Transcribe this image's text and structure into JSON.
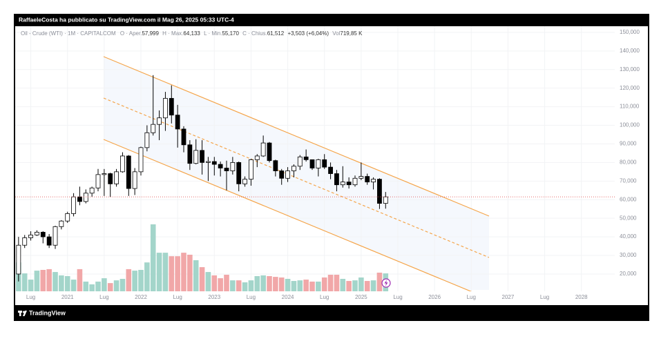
{
  "header": {
    "text": "RaffaeleCosta ha pubblicato su TradingView.com il Mag 26, 2025 05:33 UTC-4"
  },
  "legend": {
    "symbol": "Oil - Crude (WTI) · 1M · CAPITALCOM",
    "open_label": "O · Aper.",
    "open": "57,999",
    "high_label": "H · Max.",
    "high": "64,133",
    "low_label": "L · Min.",
    "low": "55,170",
    "close_label": "C · Chius.",
    "close": "61,512",
    "change": "+3,503 (+6,04%)",
    "volume_label": "Vol",
    "volume": "719,85 K"
  },
  "footer": {
    "brand": "TradingView"
  },
  "chart_data": {
    "type": "candlestick",
    "x": [
      "2020-05",
      "2020-06",
      "2020-07",
      "2020-08",
      "2020-09",
      "2020-10",
      "2020-11",
      "2020-12",
      "2021-01",
      "2021-02",
      "2021-03",
      "2021-04",
      "2021-05",
      "2021-06",
      "2021-07",
      "2021-08",
      "2021-09",
      "2021-10",
      "2021-11",
      "2021-12",
      "2022-01",
      "2022-02",
      "2022-03",
      "2022-04",
      "2022-05",
      "2022-06",
      "2022-07",
      "2022-08",
      "2022-09",
      "2022-10",
      "2022-11",
      "2022-12",
      "2023-01",
      "2023-02",
      "2023-03",
      "2023-04",
      "2023-05",
      "2023-06",
      "2023-07",
      "2023-08",
      "2023-09",
      "2023-10",
      "2023-11",
      "2023-12",
      "2024-01",
      "2024-02",
      "2024-03",
      "2024-04",
      "2024-05",
      "2024-06",
      "2024-07",
      "2024-08",
      "2024-09",
      "2024-10",
      "2024-11",
      "2024-12",
      "2025-01",
      "2025-02",
      "2025-03",
      "2025-04",
      "2025-05"
    ],
    "open": [
      20,
      35.5,
      39.5,
      41,
      42.5,
      40,
      35.5,
      45.5,
      48.5,
      52.5,
      61.5,
      59,
      63.5,
      66.3,
      73.5,
      74,
      68.5,
      75,
      83.5,
      66,
      75,
      88,
      96,
      100.5,
      104,
      114.5,
      105.5,
      98,
      89.5,
      79.5,
      86.5,
      80,
      80.5,
      79,
      77,
      75.5,
      80,
      68.5,
      71,
      81.5,
      83.5,
      90.5,
      81,
      75.5,
      71.5,
      75.5,
      78,
      83,
      81.5,
      77,
      81.5,
      77.5,
      74,
      68,
      69.5,
      68,
      71.5,
      72.5,
      69.5,
      71,
      57.999
    ],
    "high": [
      40,
      41,
      43,
      43.5,
      43,
      41.5,
      46,
      49,
      53.5,
      63.5,
      67,
      65.5,
      67,
      76.5,
      76.5,
      74.5,
      76.5,
      85.5,
      84,
      77,
      88.5,
      100,
      127,
      108,
      118,
      121.5,
      111,
      99.5,
      92,
      92.5,
      92,
      83,
      83,
      80.5,
      81,
      83,
      80.5,
      72.5,
      82,
      84.5,
      94.5,
      91,
      81.5,
      76.5,
      77.5,
      79,
      84,
      87,
      81.5,
      82,
      84.5,
      80,
      76,
      78,
      72,
      73,
      80,
      74,
      72,
      71.5,
      64.133
    ],
    "low": [
      16,
      34,
      38,
      40.5,
      36.5,
      34,
      33.5,
      44,
      47.5,
      51,
      57,
      58,
      61.5,
      64.5,
      62,
      61.5,
      67,
      74.5,
      62,
      62.5,
      73,
      86,
      94.5,
      92,
      97,
      101,
      88,
      85.5,
      76,
      79,
      73.5,
      70,
      73,
      72.5,
      65,
      73.5,
      64.5,
      67,
      67.5,
      77.5,
      83,
      80,
      72.5,
      68,
      69.5,
      72,
      76,
      80.5,
      76,
      72.5,
      76.5,
      71,
      64.5,
      66.5,
      66,
      67,
      70.5,
      68,
      65.5,
      55,
      55.17
    ],
    "close": [
      35.5,
      39.5,
      41,
      42.5,
      40,
      35.5,
      45.5,
      48.5,
      52.5,
      61.5,
      59,
      63.5,
      66.3,
      73.5,
      74,
      68.5,
      75,
      83.5,
      66,
      75,
      88,
      96,
      100.5,
      104,
      114.5,
      105.5,
      98,
      89.5,
      79.5,
      86.5,
      80,
      80.5,
      79,
      77,
      75.5,
      80,
      68.5,
      71,
      81.5,
      83.5,
      90.5,
      81,
      75.5,
      71.5,
      75.5,
      78,
      83,
      81.5,
      77,
      81.5,
      77.5,
      74,
      68,
      69.5,
      68,
      71.5,
      72.5,
      69.5,
      71,
      58,
      61.512
    ],
    "volume": [
      1160,
      720,
      470,
      830,
      860,
      890,
      775,
      640,
      610,
      470,
      890,
      390,
      280,
      390,
      525,
      330,
      440,
      500,
      890,
      830,
      860,
      1160,
      2690,
      1550,
      1550,
      1410,
      1410,
      1550,
      1470,
      1250,
      970,
      775,
      640,
      525,
      665,
      440,
      440,
      360,
      440,
      610,
      640,
      610,
      580,
      555,
      500,
      415,
      440,
      470,
      390,
      390,
      555,
      665,
      665,
      500,
      415,
      440,
      555,
      415,
      440,
      750,
      719.85
    ],
    "xlim": [
      "2020-04",
      "2028-06"
    ],
    "xticks": [
      {
        "value": "2020-07",
        "label": "Lug"
      },
      {
        "value": "2021-01",
        "label": "2021"
      },
      {
        "value": "2021-07",
        "label": "Lug"
      },
      {
        "value": "2022-01",
        "label": "2022"
      },
      {
        "value": "2022-07",
        "label": "Lug"
      },
      {
        "value": "2023-01",
        "label": "2023"
      },
      {
        "value": "2023-07",
        "label": "Lug"
      },
      {
        "value": "2024-01",
        "label": "2024"
      },
      {
        "value": "2024-07",
        "label": "Lug"
      },
      {
        "value": "2025-01",
        "label": "2025"
      },
      {
        "value": "2025-07",
        "label": "Lug"
      },
      {
        "value": "2026-01",
        "label": "2026"
      },
      {
        "value": "2026-07",
        "label": "Lug"
      },
      {
        "value": "2027-01",
        "label": "2027"
      },
      {
        "value": "2027-07",
        "label": "Lug"
      },
      {
        "value": "2028-01",
        "label": "2028"
      }
    ],
    "ylim": [
      10.7,
      153.3
    ],
    "yticks": [
      {
        "value": 20,
        "label": "20,000"
      },
      {
        "value": 30,
        "label": "30,000"
      },
      {
        "value": 40,
        "label": "40,000"
      },
      {
        "value": 50,
        "label": "50,000"
      },
      {
        "value": 60,
        "label": "60,000"
      },
      {
        "value": 70,
        "label": "70,000"
      },
      {
        "value": 80,
        "label": "80,000"
      },
      {
        "value": 90,
        "label": "90,000"
      },
      {
        "value": 100,
        "label": "100,000"
      },
      {
        "value": 110,
        "label": "110,000"
      },
      {
        "value": 120,
        "label": "120,000"
      },
      {
        "value": 130,
        "label": "130,000"
      },
      {
        "value": 140,
        "label": "140,000"
      },
      {
        "value": 150,
        "label": "150,000"
      }
    ],
    "vlim": [
      0,
      10650
    ],
    "grid": true,
    "up_color": "#ffffff",
    "down_color": "#000000",
    "wick_color": "#000000",
    "volume_up_color": "#a3d5ca",
    "volume_down_color": "#f1a7a8",
    "last_price_color": "#e05555"
  }
}
